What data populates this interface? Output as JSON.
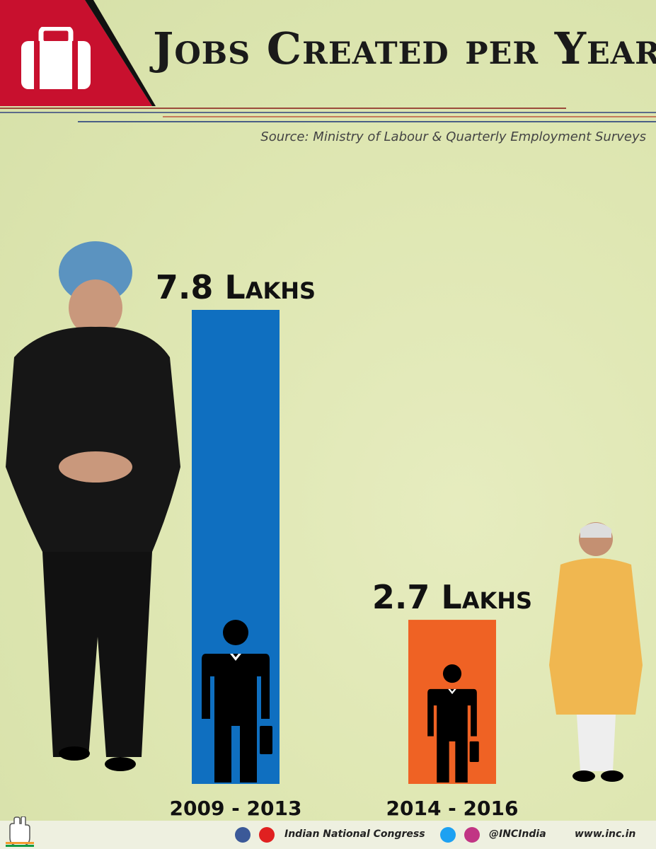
{
  "header": {
    "title": "Jobs Created per Year",
    "source": "Source: Ministry of Labour & Quarterly Employment Surveys"
  },
  "colors": {
    "header_red": "#c8102e",
    "bar1": "#0f6fc0",
    "bar2": "#ef6224",
    "text": "#111111"
  },
  "icons": [
    "briefcase-icon",
    "businessman-icon",
    "facebook-icon",
    "youtube-icon",
    "twitter-icon",
    "instagram-icon",
    "congress-hand-logo"
  ],
  "chart_data": {
    "type": "bar",
    "title": "Jobs Created per Year",
    "categories": [
      "2009 - 2013",
      "2014 - 2016"
    ],
    "values": [
      7.8,
      2.7
    ],
    "value_labels": [
      "7.8 Lakhs",
      "2.7 Lakhs"
    ],
    "ylim": [
      0,
      7.8
    ],
    "grid": false,
    "colors": [
      "#0f6fc0",
      "#ef6224"
    ]
  },
  "footer": {
    "org": "Indian National Congress",
    "handle": "@INCIndia",
    "website": "www.inc.in"
  }
}
